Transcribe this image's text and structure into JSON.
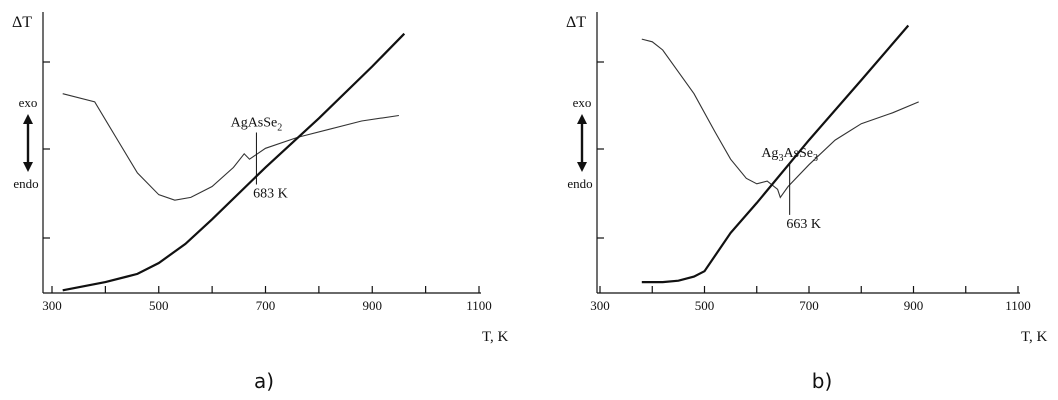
{
  "chart_data": [
    {
      "type": "line",
      "panel_label": "a)",
      "ylabel": "ΔT",
      "xlabel": "T, K",
      "xlim": [
        300,
        1100
      ],
      "x_ticks": [
        300,
        500,
        700,
        900,
        1100
      ],
      "side_labels": {
        "exo": "exo",
        "endo": "endo"
      },
      "annotation": {
        "compound_base": "AgAsSe",
        "compound_sub": "2",
        "temperature": "683 K",
        "x": 683
      },
      "series": [
        {
          "style": "thin",
          "x": [
            320,
            380,
            420,
            460,
            500,
            530,
            560,
            600,
            640,
            660,
            670,
            700,
            760,
            820,
            880,
            950
          ],
          "y": [
            0.73,
            0.7,
            0.57,
            0.44,
            0.36,
            0.34,
            0.35,
            0.39,
            0.46,
            0.51,
            0.49,
            0.53,
            0.57,
            0.6,
            0.63,
            0.65
          ]
        },
        {
          "style": "thick",
          "x": [
            320,
            400,
            460,
            500,
            550,
            600,
            700,
            800,
            900,
            960
          ],
          "y": [
            0.01,
            0.04,
            0.07,
            0.11,
            0.18,
            0.27,
            0.46,
            0.64,
            0.83,
            0.95
          ]
        }
      ]
    },
    {
      "type": "line",
      "panel_label": "b)",
      "ylabel": "ΔT",
      "xlabel": "T, K",
      "xlim": [
        300,
        1100
      ],
      "x_ticks": [
        300,
        500,
        700,
        900,
        1100
      ],
      "side_labels": {
        "exo": "exo",
        "endo": "endo"
      },
      "annotation": {
        "compound_base": "Ag",
        "compound_sub": "3",
        "compound_mid": "AsSe",
        "compound_sub2": "3",
        "temperature": "663 K",
        "x": 663
      },
      "series": [
        {
          "style": "thin",
          "x": [
            380,
            400,
            420,
            450,
            480,
            520,
            550,
            580,
            600,
            620,
            640,
            645,
            660,
            700,
            750,
            800,
            860,
            910
          ],
          "y": [
            0.93,
            0.92,
            0.89,
            0.81,
            0.73,
            0.59,
            0.49,
            0.42,
            0.4,
            0.41,
            0.38,
            0.35,
            0.39,
            0.47,
            0.56,
            0.62,
            0.66,
            0.7
          ]
        },
        {
          "style": "thick",
          "x": [
            380,
            420,
            450,
            480,
            500,
            550,
            600,
            700,
            800,
            890
          ],
          "y": [
            0.04,
            0.04,
            0.045,
            0.06,
            0.08,
            0.22,
            0.33,
            0.56,
            0.78,
            0.98
          ]
        }
      ]
    }
  ]
}
